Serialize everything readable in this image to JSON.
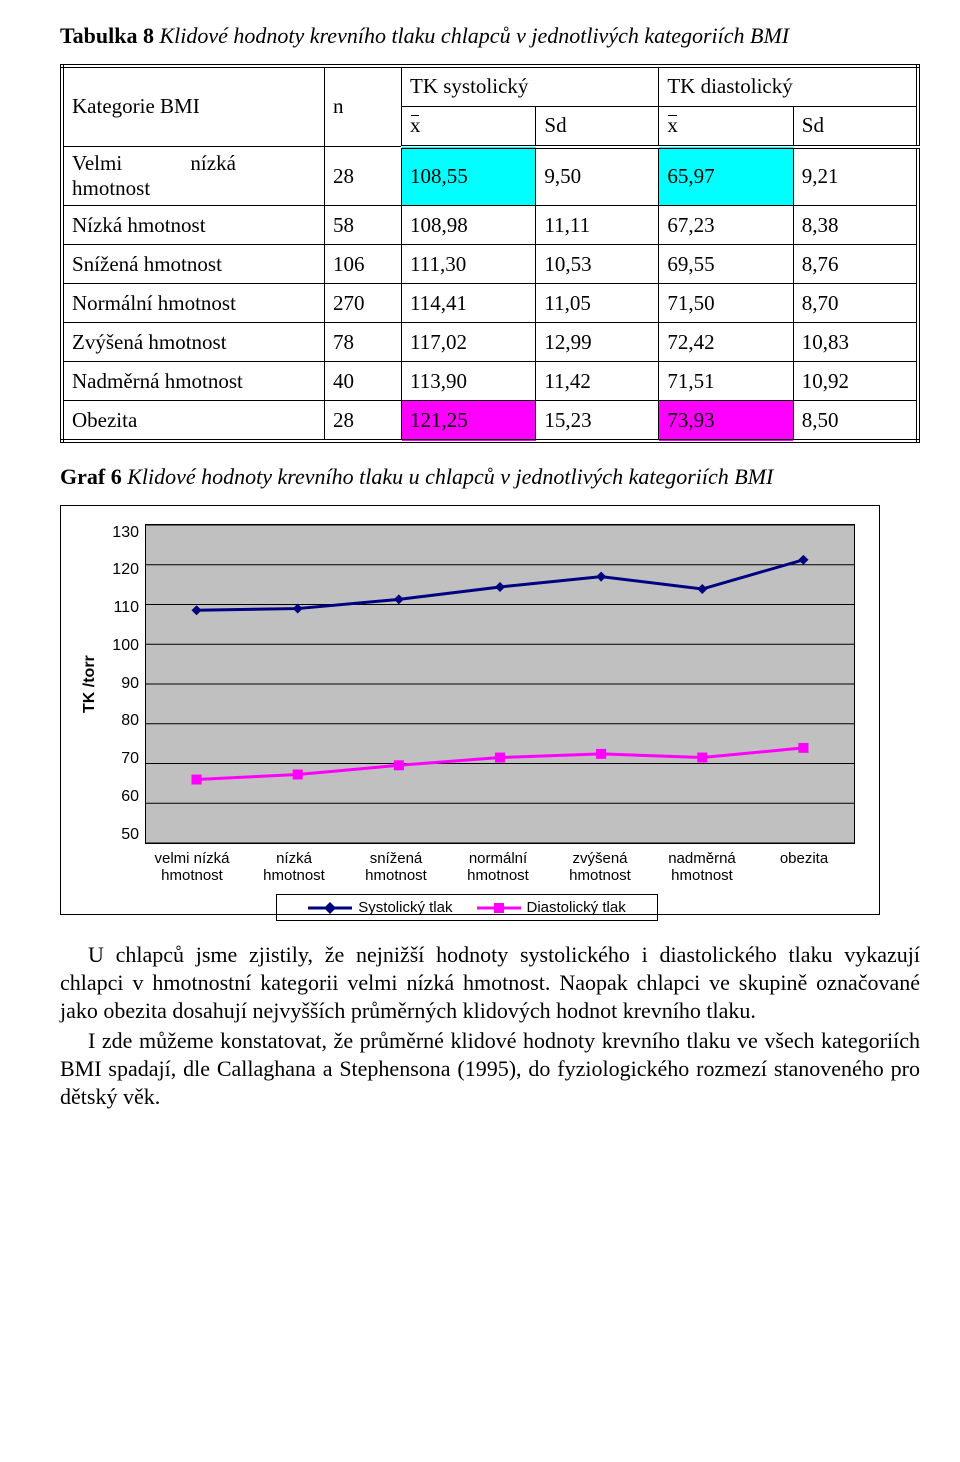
{
  "typography": {
    "body_font": "Times New Roman",
    "chart_font": "Arial",
    "body_size_pt": 16,
    "chart_label_size_pt": 12
  },
  "table_caption": {
    "label": "Tabulka 8",
    "text": "Klidové hodnoty krevního tlaku chlapců v jednotlivých kategoriích BMI"
  },
  "table": {
    "header": {
      "cat": "Kategorie BMI",
      "n": "n",
      "sys": "TK systolický",
      "dia": "TK diastolický",
      "xbar": "x",
      "sd": "Sd"
    },
    "rows": [
      {
        "cat": "Velmi nízká hmotnost",
        "cat2": "",
        "n": "28",
        "sx": "108,55",
        "ssd": "9,50",
        "dx": "65,97",
        "dsd": "9,21",
        "hl": "cyan"
      },
      {
        "cat": "Nízká hmotnost",
        "n": "58",
        "sx": "108,98",
        "ssd": "11,11",
        "dx": "67,23",
        "dsd": "8,38"
      },
      {
        "cat": "Snížená hmotnost",
        "n": "106",
        "sx": "111,30",
        "ssd": "10,53",
        "dx": "69,55",
        "dsd": "8,76"
      },
      {
        "cat": "Normální hmotnost",
        "n": "270",
        "sx": "114,41",
        "ssd": "11,05",
        "dx": "71,50",
        "dsd": "8,70"
      },
      {
        "cat": "Zvýšená hmotnost",
        "n": "78",
        "sx": "117,02",
        "ssd": "12,99",
        "dx": "72,42",
        "dsd": "10,83"
      },
      {
        "cat": "Nadměrná hmotnost",
        "n": "40",
        "sx": "113,90",
        "ssd": "11,42",
        "dx": "71,51",
        "dsd": "10,92"
      },
      {
        "cat": "Obezita",
        "n": "28",
        "sx": "121,25",
        "ssd": "15,23",
        "dx": "73,93",
        "dsd": "8,50",
        "hl": "mag"
      }
    ],
    "highlight_colors": {
      "cyan": "#00ffff",
      "mag": "#ff00ff"
    }
  },
  "graph_caption": {
    "label": "Graf 6",
    "text": "Klidové hodnoty krevního tlaku u chlapců v jednotlivých kategoriích BMI"
  },
  "chart": {
    "type": "line",
    "ylabel": "TK /torr",
    "ylabel_fontsize": 16,
    "ylim": [
      50,
      130
    ],
    "ytick_step": 10,
    "yticks": [
      130,
      120,
      110,
      100,
      90,
      80,
      70,
      60,
      50
    ],
    "categories_2line": [
      [
        "velmi nízká",
        "hmotnost"
      ],
      [
        "nízká",
        "hmotnost"
      ],
      [
        "snížená",
        "hmotnost"
      ],
      [
        "normální",
        "hmotnost"
      ],
      [
        "zvýšená",
        "hmotnost"
      ],
      [
        "nadměrná",
        "hmotnost"
      ],
      [
        "obezita",
        ""
      ]
    ],
    "series": [
      {
        "name": "Systolický tlak",
        "marker": "diamond",
        "color": "#000080",
        "line_width": 3,
        "values": [
          108.55,
          108.98,
          111.3,
          114.41,
          117.02,
          113.9,
          121.25
        ]
      },
      {
        "name": "Diastolický tlak",
        "marker": "square",
        "color": "#ff00ff",
        "line_width": 3,
        "values": [
          65.97,
          67.23,
          69.55,
          71.5,
          72.42,
          71.51,
          73.93
        ]
      }
    ],
    "marker_size": 10,
    "background_color": "#c0c0c0",
    "grid_color": "#000000",
    "grid_line_width": 1,
    "border_color": "#000000",
    "legend": {
      "border": true,
      "items": [
        "Systolický tlak",
        "Diastolický tlak"
      ]
    }
  },
  "body_paragraphs": [
    "U chlapců jsme zjistily, že nejnižší hodnoty systolického i diastolického tlaku vykazují chlapci v hmotnostní kategorii velmi nízká hmotnost. Naopak chlapci ve skupině označované jako obezita dosahují nejvyšších průměrných klidových hodnot krevního tlaku.",
    "I zde můžeme konstatovat, že průměrné klidové hodnoty krevního tlaku ve všech kategoriích BMI spadají, dle Callaghana a Stephensona (1995), do fyziologického rozmezí stanoveného pro dětský věk."
  ]
}
